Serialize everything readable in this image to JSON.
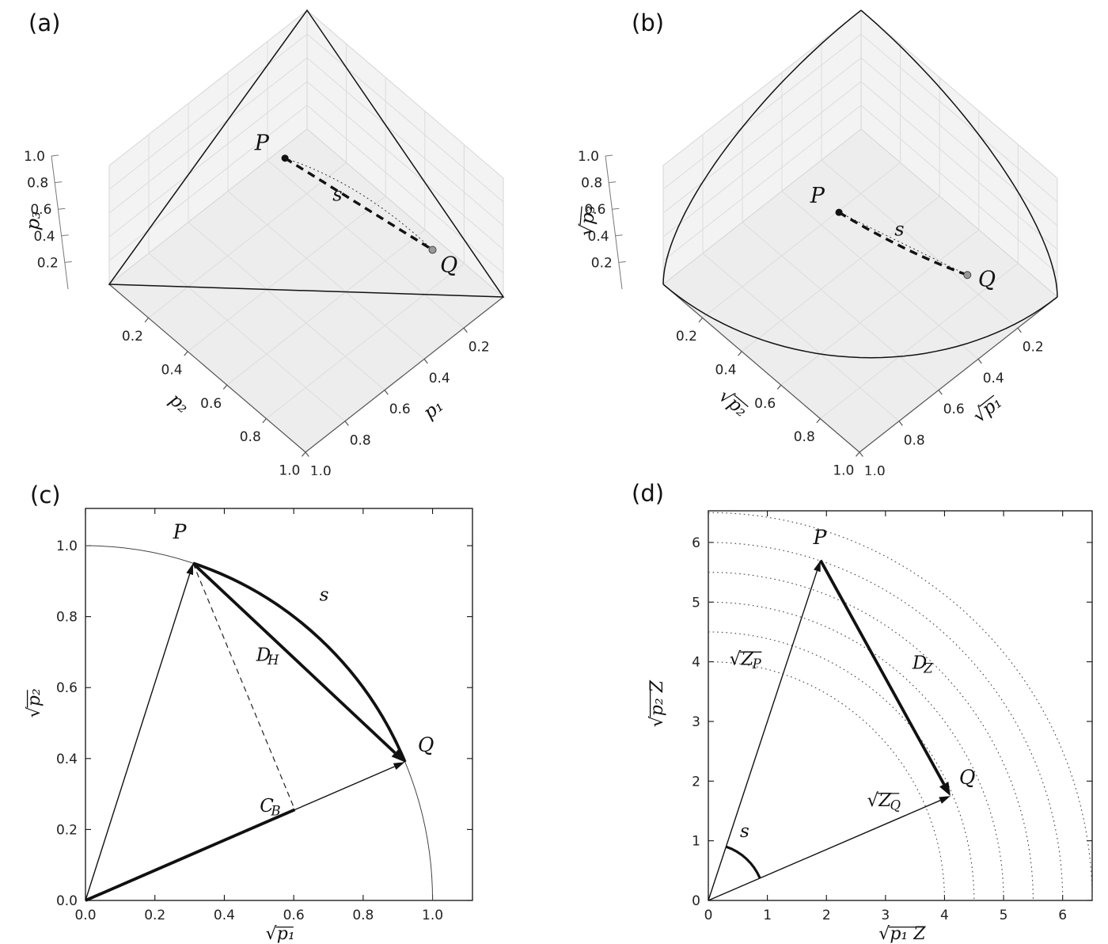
{
  "panels": {
    "a": {
      "label": "(a)"
    },
    "b": {
      "label": "(b)"
    },
    "c": {
      "label": "(c)"
    },
    "d": {
      "label": "(d)"
    }
  },
  "chart_data": [
    {
      "id": "a",
      "type": "3d-surface",
      "surface": "simplex",
      "axis_labels": {
        "x": {
          "main": "p₁"
        },
        "y": {
          "main": "p₂"
        },
        "z": {
          "main": "p₃"
        }
      },
      "ticks": [
        0.2,
        0.4,
        0.6,
        0.8,
        1.0
      ],
      "tick_labels": [
        "0.2",
        "0.4",
        "0.6",
        "0.8",
        "1.0"
      ],
      "P": [
        0.32,
        0.21,
        0.47
      ],
      "Q": [
        0.1,
        0.74,
        0.16
      ],
      "point_labels": {
        "P": "P",
        "Q": "Q",
        "path": "s"
      }
    },
    {
      "id": "b",
      "type": "3d-surface",
      "surface": "sphere-octant",
      "axis_labels": {
        "x": {
          "pre": "√",
          "main": "p₁"
        },
        "y": {
          "pre": "√",
          "main": "p₂"
        },
        "z": {
          "pre": "√",
          "main": "p₃"
        }
      },
      "ticks": [
        0.2,
        0.4,
        0.6,
        0.8,
        1.0
      ],
      "tick_labels": [
        "0.2",
        "0.4",
        "0.6",
        "0.8",
        "1.0"
      ],
      "P": [
        0.566,
        0.458,
        0.686
      ],
      "Q": [
        0.316,
        0.86,
        0.4
      ],
      "point_labels": {
        "P": "P",
        "Q": "Q",
        "path": "s"
      }
    },
    {
      "id": "c",
      "type": "2d-vectors",
      "xlabel": {
        "pre": "√",
        "main": "p₁"
      },
      "ylabel": {
        "pre": "√",
        "main": "p₂"
      },
      "xlim": [
        0,
        1.115
      ],
      "ylim": [
        0,
        1.105
      ],
      "xticks": [
        0,
        0.2,
        0.4,
        0.6,
        0.8,
        1.0
      ],
      "xtick_labels": [
        "0.0",
        "0.2",
        "0.4",
        "0.6",
        "0.8",
        "1.0"
      ],
      "yticks": [
        0,
        0.2,
        0.4,
        0.6,
        0.8,
        1.0
      ],
      "ytick_labels": [
        "0.0",
        "0.2",
        "0.4",
        "0.6",
        "0.8",
        "1.0"
      ],
      "unit_circle_radius": 1.0,
      "P": [
        0.31,
        0.95
      ],
      "Q": [
        0.92,
        0.39
      ],
      "projection_foot": [
        0.603,
        0.256
      ],
      "labels": {
        "P": {
          "main": "P",
          "pos": [
            0.27,
            1.02
          ]
        },
        "Q": {
          "main": "Q",
          "pos": [
            0.975,
            0.42
          ]
        },
        "s": {
          "main": "s",
          "pos": [
            0.685,
            0.845
          ]
        },
        "DH": {
          "main": "D",
          "sub": "H",
          "pos": [
            0.52,
            0.675
          ]
        },
        "CB": {
          "main": "C",
          "sub": "B",
          "pos": [
            0.53,
            0.25
          ]
        }
      }
    },
    {
      "id": "d",
      "type": "2d-vectors",
      "xlabel": {
        "pre": "√",
        "main": "p₁ Z"
      },
      "ylabel": {
        "pre": "√",
        "main": "p₂ Z"
      },
      "xlim": [
        0,
        6.5
      ],
      "ylim": [
        0,
        6.53
      ],
      "xticks": [
        0,
        1,
        2,
        3,
        4,
        5,
        6
      ],
      "xtick_labels": [
        "0",
        "1",
        "2",
        "3",
        "4",
        "5",
        "6"
      ],
      "yticks": [
        0,
        1,
        2,
        3,
        4,
        5,
        6
      ],
      "ytick_labels": [
        "0",
        "1",
        "2",
        "3",
        "4",
        "5",
        "6"
      ],
      "dotted_radii": [
        4,
        4.5,
        5,
        5.5,
        6,
        6.5
      ],
      "P": [
        1.9,
        5.7
      ],
      "Q": [
        4.1,
        1.75
      ],
      "angle_arc_radius": 0.95,
      "labels": {
        "P": {
          "main": "P",
          "pos": [
            1.88,
            5.97
          ]
        },
        "Q": {
          "main": "Q",
          "pos": [
            4.35,
            1.95
          ]
        },
        "s": {
          "main": "s",
          "pos": [
            0.6,
            1.06
          ]
        },
        "DZ": {
          "main": "D",
          "sub": "Z",
          "pos": [
            3.62,
            3.88
          ]
        },
        "ZP": {
          "pre": "√",
          "main": "Z",
          "sub": "P",
          "pos": [
            0.62,
            3.95
          ]
        },
        "ZQ": {
          "pre": "√",
          "main": "Z",
          "sub": "Q",
          "pos": [
            2.95,
            1.58
          ]
        }
      }
    }
  ]
}
